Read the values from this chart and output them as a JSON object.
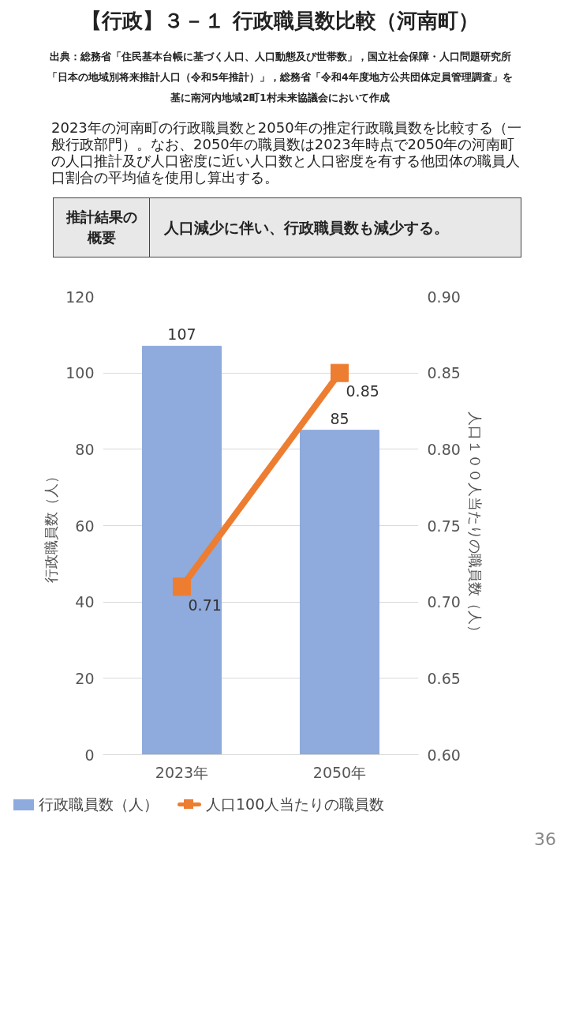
{
  "chart_data": {
    "type": "bar",
    "title": "【行政】３－１ 行政職員数比較（河南町）",
    "subtitle": "出典：総務省「住民基本台帳に基づく人口、人口動態及び世帯数」，国立社会保障・人口問題研究所「日本の地域別将来推計人口（令和5年推計）」，総務省「令和4年度地方公共団体定員管理調査」を基に南河内地域2町1村未来協議会において作成",
    "annotations": [
      "2023年の河南町の行政職員数と2050年の推定行政職員数を比較する（一般行政部門）。なお、2050年の職員数は2023年時点で2050年の河南町の人口推計及び人口密度に近い人口数と人口密度を有する他団体の職員人口割合の平均値を使用し算出する。",
      "推計結果の概要",
      "人口減少に伴い、行政職員数も減少する。",
      "36"
    ],
    "categories": [
      "2023年",
      "2050年"
    ],
    "series": [
      {
        "name": "行政職員数（人）",
        "color": "#8faadc",
        "values": [
          107,
          85
        ]
      },
      {
        "name": "人口100人当たりの職員数",
        "type": "line",
        "axis": "y2",
        "color": "#ed7d31",
        "values": [
          0.71,
          0.85
        ],
        "marker": "square"
      }
    ],
    "ylabel": "行政職員数（人）",
    "y2label": "人口１００人当たりの職員数（人）",
    "ylim": [
      0,
      120
    ],
    "yticks": [
      0,
      20,
      40,
      60,
      80,
      100,
      120
    ],
    "y2lim": [
      0.6,
      0.9
    ],
    "y2ticks": [
      {
        "value": 0.6,
        "label": "0.60"
      },
      0.65,
      {
        "value": 0.7,
        "label": "0.70"
      },
      0.75,
      {
        "value": 0.8,
        "label": "0.80"
      },
      0.85,
      {
        "value": 0.9,
        "label": "0.90"
      }
    ],
    "data_labels": true,
    "grid": "y",
    "legend": "bottom"
  }
}
